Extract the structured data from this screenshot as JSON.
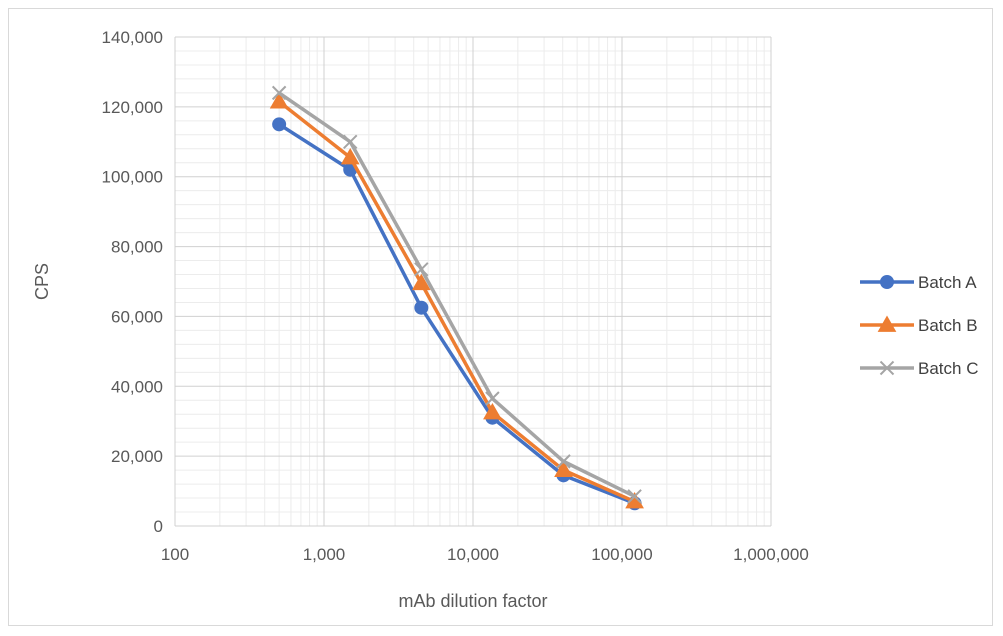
{
  "chart_data": {
    "type": "line",
    "title": "",
    "xlabel": "mAb dilution factor",
    "ylabel": "CPS",
    "x_scale": "log",
    "xlim": [
      100,
      1000000
    ],
    "ylim": [
      0,
      140000
    ],
    "x_ticks": [
      100,
      1000,
      10000,
      100000,
      1000000
    ],
    "x_tick_labels": [
      "100",
      "1,000",
      "10,000",
      "100,000",
      "1,000,000"
    ],
    "y_ticks": [
      0,
      20000,
      40000,
      60000,
      80000,
      100000,
      120000,
      140000
    ],
    "y_tick_labels": [
      "0",
      "20,000",
      "40,000",
      "60,000",
      "80,000",
      "100,000",
      "120,000",
      "140,000"
    ],
    "grid": true,
    "legend_position": "right",
    "x": [
      500,
      1500,
      4500,
      13500,
      40500,
      121500
    ],
    "series": [
      {
        "name": "Batch A",
        "color": "#4472C4",
        "marker": "circle",
        "values": [
          115000,
          102000,
          62500,
          31000,
          14500,
          6500
        ]
      },
      {
        "name": "Batch B",
        "color": "#ED7D31",
        "marker": "triangle",
        "values": [
          121500,
          105500,
          69500,
          32500,
          16000,
          7000
        ]
      },
      {
        "name": "Batch C",
        "color": "#A5A5A5",
        "marker": "x",
        "values": [
          124000,
          110000,
          73500,
          36500,
          18500,
          8500
        ]
      }
    ]
  }
}
